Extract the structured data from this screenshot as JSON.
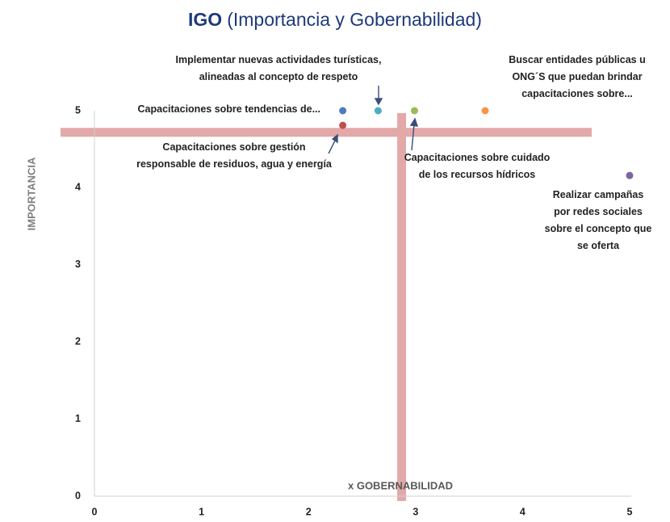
{
  "chart_data": {
    "type": "scatter",
    "title_bold": "IGO",
    "title": "(Importancia y Gobernabilidad)",
    "xlabel": "x GOBERNABILIDAD",
    "ylabel": "IMPORTANCIA",
    "xlim": [
      0,
      5
    ],
    "ylim": [
      0,
      5
    ],
    "xticks": [
      0,
      1,
      2,
      3,
      4,
      5
    ],
    "yticks": [
      0,
      1,
      2,
      3,
      4,
      5
    ],
    "grid": false,
    "reference_lines": {
      "x": 2.87,
      "y": 4.72,
      "color": "#e3a9a9"
    },
    "series": [
      {
        "name": "Capacitaciones sobre tendencias de...",
        "color": "#4a7ebf",
        "x": [
          2.32
        ],
        "values": [
          5
        ]
      },
      {
        "name": "Implementar nuevas actividades turísticas,\nalineadas al concepto de respeto",
        "color": "#4bacc6",
        "x": [
          2.65
        ],
        "values": [
          5
        ]
      },
      {
        "name": "Capacitaciones sobre cuidado\nde los recursos hídricos",
        "color": "#9bbb59",
        "x": [
          2.99
        ],
        "values": [
          5
        ]
      },
      {
        "name": "Buscar entidades públicas u\nONG´S que puedan brindar\ncapacitaciones sobre...",
        "color": "#f79646",
        "x": [
          3.65
        ],
        "values": [
          5
        ]
      },
      {
        "name": "Capacitaciones sobre gestión\nresponsable de residuos, agua y energía",
        "color": "#c0504d",
        "x": [
          2.32
        ],
        "values": [
          4.81
        ]
      },
      {
        "name": "Realizar campañas\npor redes sociales\nsobre el concepto que\nse oferta",
        "color": "#8064a2",
        "x": [
          5
        ],
        "values": [
          4.16
        ]
      }
    ]
  }
}
